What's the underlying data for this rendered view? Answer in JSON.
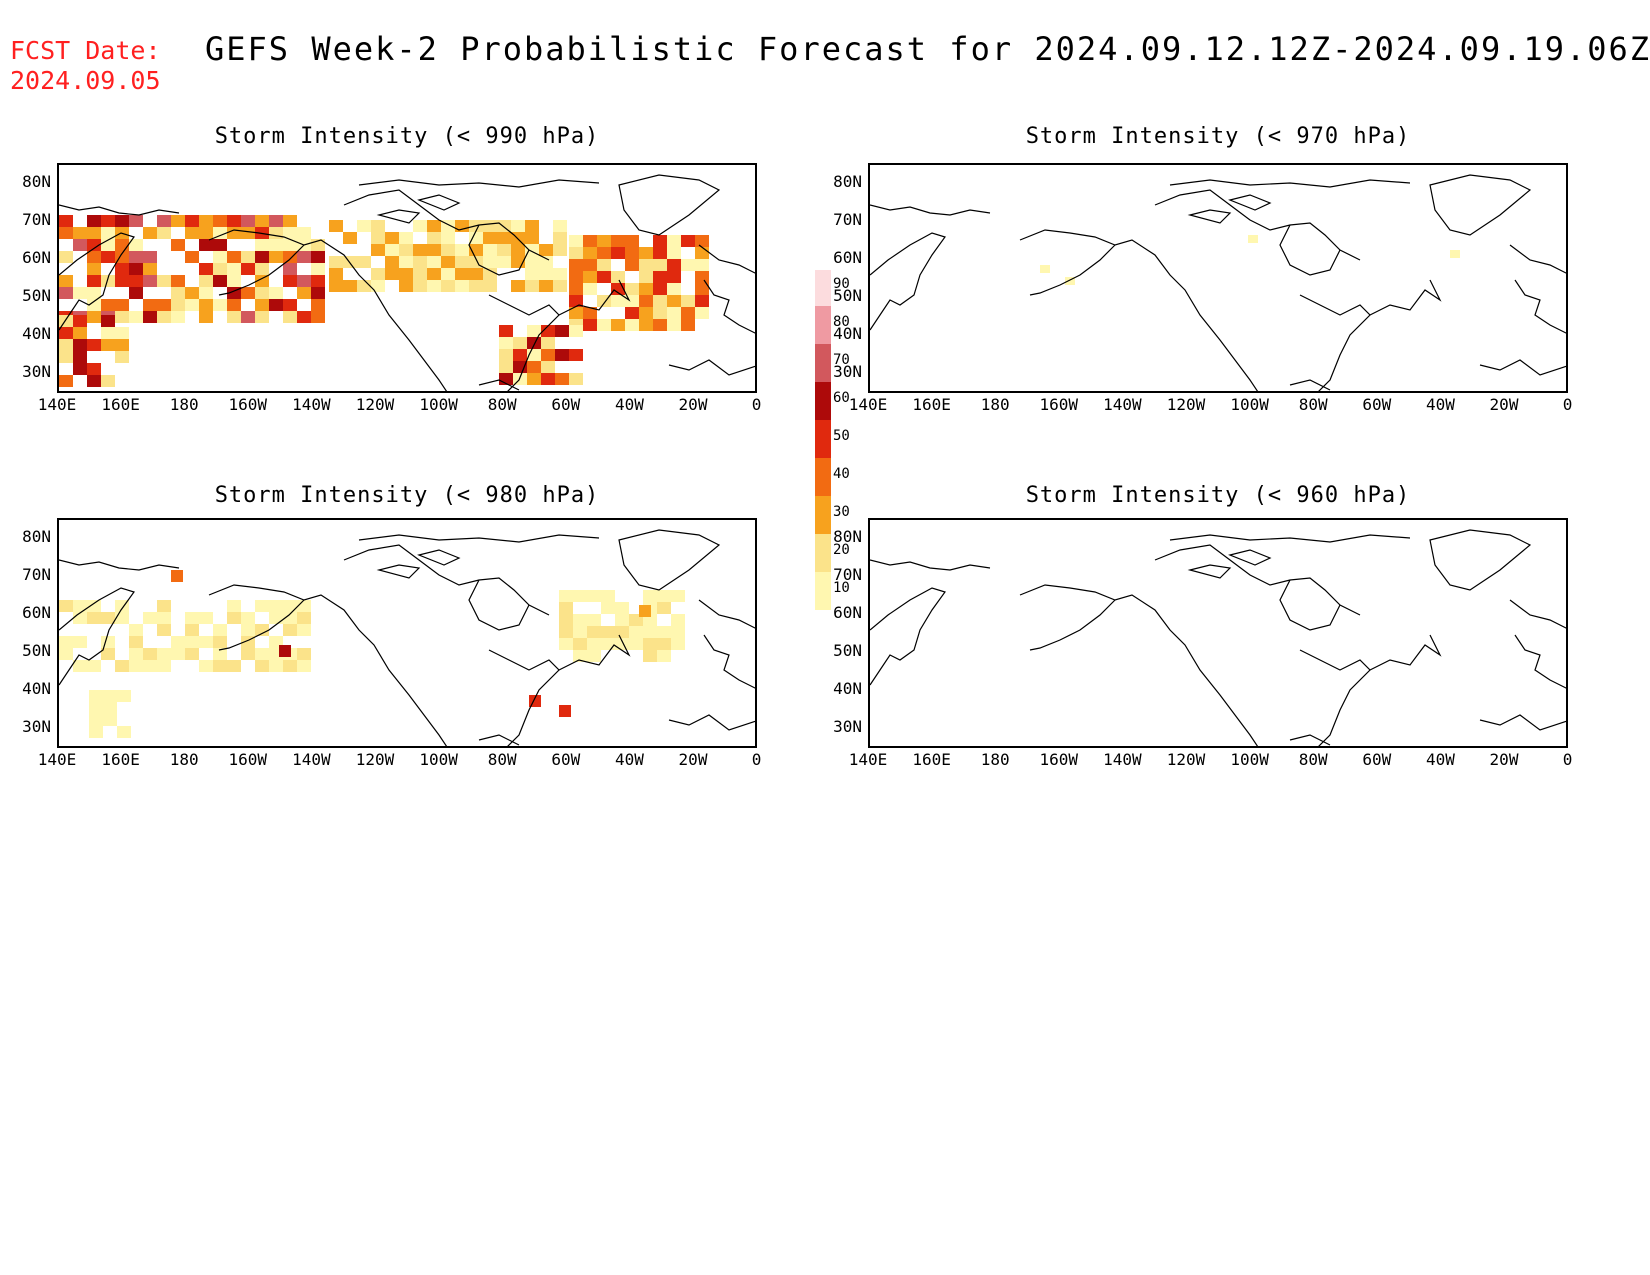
{
  "header": {
    "fcst_label": "FCST Date:",
    "fcst_date": "2024.09.05",
    "title": "GEFS Week-2 Probabilistic Forecast for 2024.09.12.12Z-2024.09.19.06Z"
  },
  "axes": {
    "lat_ticks": [
      "80N",
      "70N",
      "60N",
      "50N",
      "40N",
      "30N"
    ],
    "lon_ticks": [
      "140E",
      "160E",
      "180",
      "160W",
      "140W",
      "120W",
      "100W",
      "80W",
      "60W",
      "40W",
      "20W",
      "0"
    ]
  },
  "panels": [
    {
      "id": "p990",
      "title": "Storm Intensity (< 990 hPa)",
      "coverage": "widespread"
    },
    {
      "id": "p970",
      "title": "Storm Intensity (< 970 hPa)",
      "coverage": "sparse"
    },
    {
      "id": "p980",
      "title": "Storm Intensity (< 980 hPa)",
      "coverage": "moderate"
    },
    {
      "id": "p960",
      "title": "Storm Intensity (< 960 hPa)",
      "coverage": "none"
    }
  ],
  "colorbar": {
    "levels": [
      "10",
      "20",
      "30",
      "40",
      "50",
      "60",
      "70",
      "80",
      "90"
    ],
    "colors": [
      "#fff7b0",
      "#fbe38a",
      "#f7a21e",
      "#f26b12",
      "#e0290e",
      "#ad0a0a",
      "#d2585d",
      "#ef9aa2",
      "#fcdcde"
    ]
  }
}
